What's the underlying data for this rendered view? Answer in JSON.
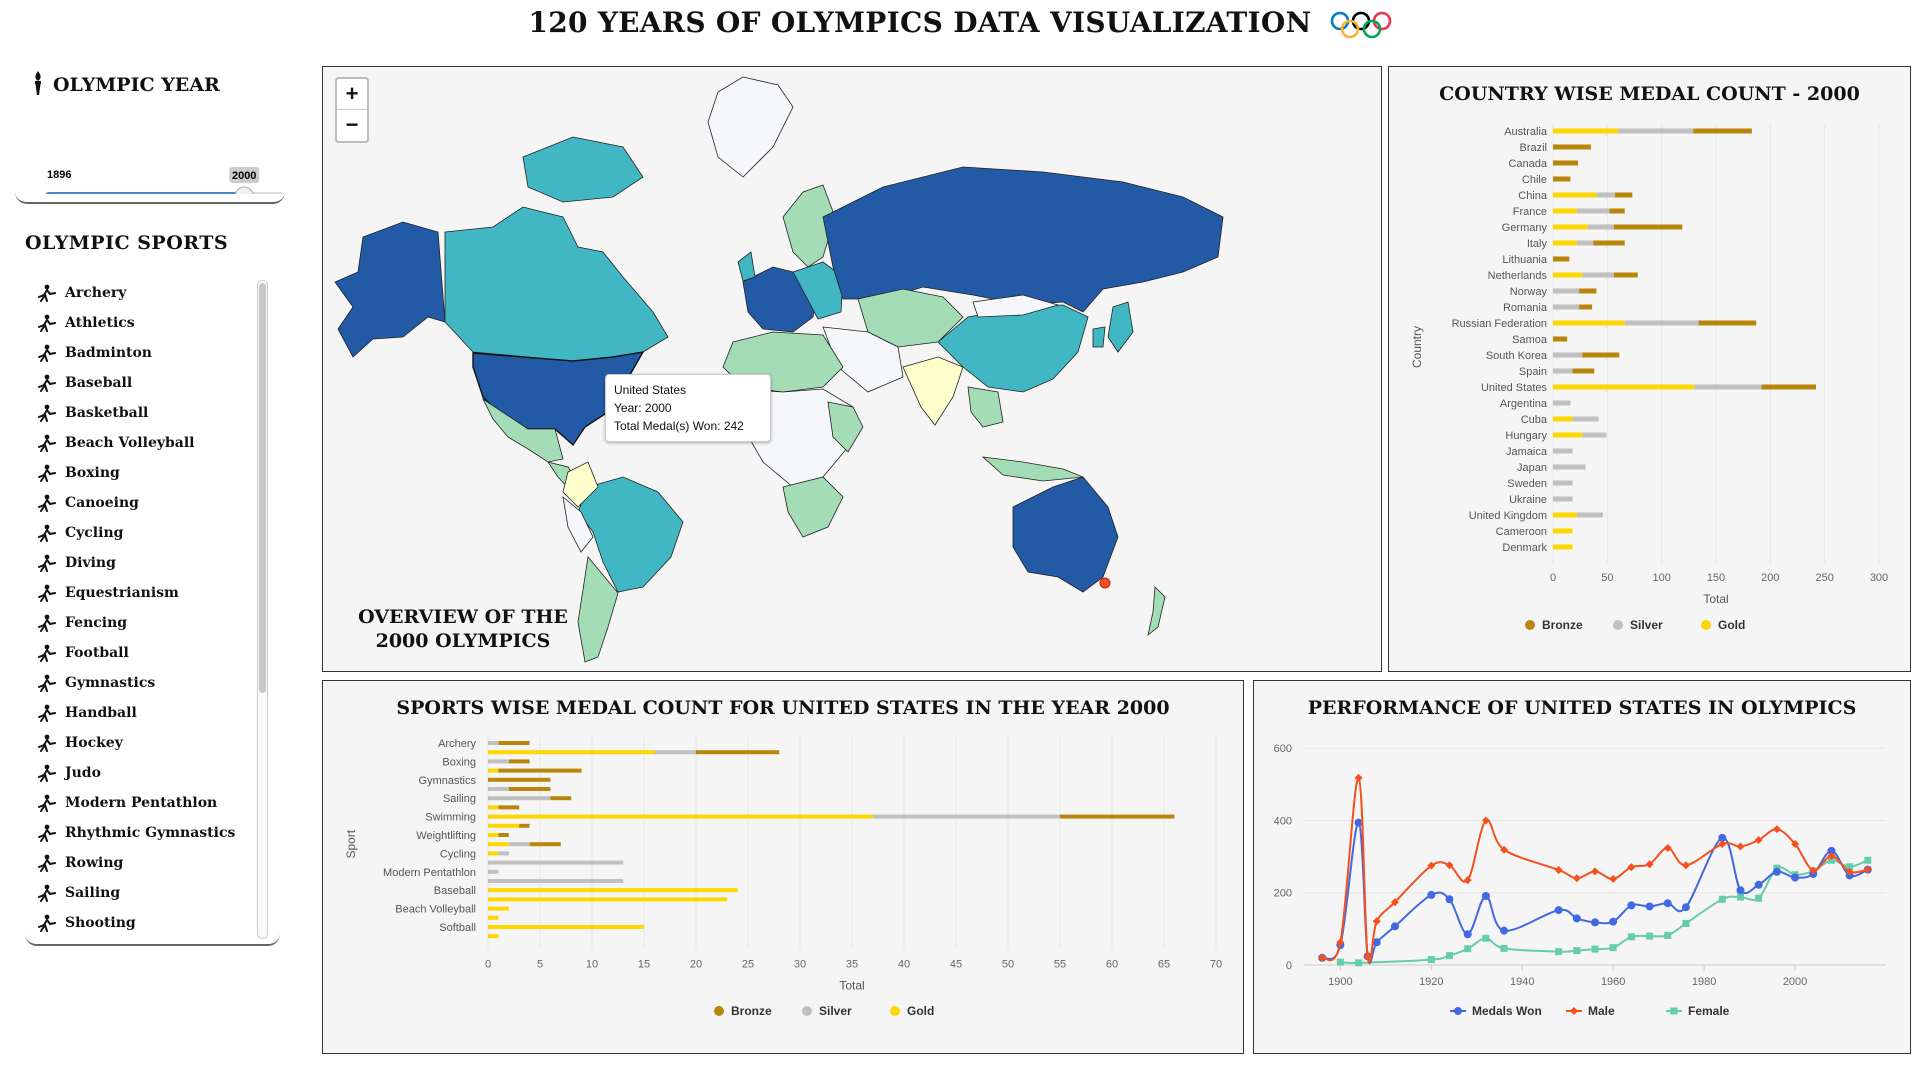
{
  "title": "120 YEARS OF OLYMPICS DATA VISUALIZATION",
  "year_panel": {
    "title": "OLYMPIC YEAR",
    "selected_year": "2000",
    "min_label": "1896",
    "ticks": [
      "1896",
      "1908",
      "1928",
      "1952",
      "1968",
      "1984",
      "2000",
      "2016"
    ],
    "slider_fraction": 0.83
  },
  "sports_panel": {
    "title": "OLYMPIC SPORTS",
    "items": [
      "Archery",
      "Athletics",
      "Badminton",
      "Baseball",
      "Basketball",
      "Beach Volleyball",
      "Boxing",
      "Canoeing",
      "Cycling",
      "Diving",
      "Equestrianism",
      "Fencing",
      "Football",
      "Gymnastics",
      "Handball",
      "Hockey",
      "Judo",
      "Modern Pentathlon",
      "Rhythmic Gymnastics",
      "Rowing",
      "Sailing",
      "Shooting"
    ]
  },
  "map": {
    "zoom_in": "+",
    "zoom_out": "−",
    "caption_line1": "OVERVIEW OF THE",
    "caption_line2": "2000 OLYMPICS",
    "tooltip": {
      "country": "United States",
      "year": "Year: 2000",
      "medals": "Total Medal(s) Won: 242"
    },
    "colors": {
      "high": "#235aa6",
      "mid": "#42b7c4",
      "low": "#a3dcb5",
      "lower": "#ffffcc",
      "none": "#f5f7fb",
      "ocean": "#f5f5f5"
    }
  },
  "colors": {
    "bronze": "#b8860b",
    "silver": "#c0c0c0",
    "gold": "#ffd700",
    "medals": "#4169e1",
    "male": "#f4511e",
    "female": "#66cdaa"
  },
  "country_chart": {
    "title": "COUNTRY WISE MEDAL COUNT - 2000",
    "chart_data": {
      "type": "bar",
      "orientation": "horizontal",
      "stacked": true,
      "categories": [
        "Australia",
        "Brazil",
        "Canada",
        "Chile",
        "China",
        "France",
        "Germany",
        "Italy",
        "Lithuania",
        "Netherlands",
        "Norway",
        "Romania",
        "Russian Federation",
        "Samoa",
        "South Korea",
        "Spain",
        "United States",
        "Argentina",
        "Cuba",
        "Hungary",
        "Jamaica",
        "Japan",
        "Sweden",
        "Ukraine",
        "United Kingdom",
        "Cameroon",
        "Denmark"
      ],
      "series": [
        {
          "name": "Gold",
          "values": [
            60,
            0,
            0,
            0,
            40,
            22,
            32,
            22,
            0,
            27,
            0,
            0,
            66,
            0,
            0,
            0,
            130,
            0,
            18,
            27,
            0,
            0,
            0,
            0,
            22,
            18,
            18
          ]
        },
        {
          "name": "Silver",
          "values": [
            69,
            0,
            0,
            0,
            17,
            30,
            24,
            15,
            0,
            29,
            24,
            24,
            68,
            0,
            27,
            18,
            62,
            16,
            24,
            22,
            18,
            30,
            18,
            18,
            24,
            0,
            0
          ]
        },
        {
          "name": "Bronze",
          "values": [
            54,
            35,
            23,
            16,
            16,
            14,
            63,
            29,
            15,
            22,
            16,
            12,
            53,
            13,
            34,
            20,
            50,
            0,
            0,
            0,
            0,
            0,
            0,
            0,
            0,
            0,
            0
          ]
        }
      ],
      "xlabel": "Total",
      "ylabel": "Country",
      "xticks": [
        0,
        50,
        100,
        150,
        200,
        250,
        300
      ],
      "xlim": [
        0,
        300
      ],
      "legend": [
        "Bronze",
        "Silver",
        "Gold"
      ],
      "legend_position": "bottom"
    }
  },
  "sports_chart": {
    "title": "SPORTS WISE MEDAL COUNT FOR UNITED STATES IN THE YEAR 2000",
    "chart_data": {
      "type": "bar",
      "orientation": "horizontal",
      "stacked": true,
      "note_rows": "each sport has two rows in the original",
      "rows": [
        {
          "label": "Archery",
          "gold": 0,
          "silver": 1,
          "bronze": 3
        },
        {
          "label": "",
          "gold": 16,
          "silver": 4,
          "bronze": 8
        },
        {
          "label": "Boxing",
          "gold": 0,
          "silver": 2,
          "bronze": 2
        },
        {
          "label": "",
          "gold": 1,
          "silver": 0,
          "bronze": 8
        },
        {
          "label": "Gymnastics",
          "gold": 0,
          "silver": 0,
          "bronze": 6
        },
        {
          "label": "",
          "gold": 0,
          "silver": 2,
          "bronze": 4
        },
        {
          "label": "Sailing",
          "gold": 0,
          "silver": 6,
          "bronze": 2
        },
        {
          "label": "",
          "gold": 1,
          "silver": 0,
          "bronze": 2
        },
        {
          "label": "Swimming",
          "gold": 37,
          "silver": 18,
          "bronze": 11
        },
        {
          "label": "",
          "gold": 3,
          "silver": 0,
          "bronze": 1
        },
        {
          "label": "Weightlifting",
          "gold": 1,
          "silver": 0,
          "bronze": 1
        },
        {
          "label": "",
          "gold": 2,
          "silver": 2,
          "bronze": 3
        },
        {
          "label": "Cycling",
          "gold": 1,
          "silver": 1,
          "bronze": 0
        },
        {
          "label": "",
          "gold": 0,
          "silver": 13,
          "bronze": 0
        },
        {
          "label": "Modern Pentathlon",
          "gold": 0,
          "silver": 1,
          "bronze": 0
        },
        {
          "label": "",
          "gold": 0,
          "silver": 13,
          "bronze": 0
        },
        {
          "label": "Baseball",
          "gold": 24,
          "silver": 0,
          "bronze": 0
        },
        {
          "label": "",
          "gold": 23,
          "silver": 0,
          "bronze": 0
        },
        {
          "label": "Beach Volleyball",
          "gold": 2,
          "silver": 0,
          "bronze": 0
        },
        {
          "label": "",
          "gold": 1,
          "silver": 0,
          "bronze": 0
        },
        {
          "label": "Softball",
          "gold": 15,
          "silver": 0,
          "bronze": 0
        },
        {
          "label": "",
          "gold": 1,
          "silver": 0,
          "bronze": 0
        }
      ],
      "xlabel": "Total",
      "ylabel": "Sport",
      "xticks": [
        0,
        5,
        10,
        15,
        20,
        25,
        30,
        35,
        40,
        45,
        50,
        55,
        60,
        65,
        70
      ],
      "xlim": [
        0,
        70
      ],
      "legend": [
        "Bronze",
        "Silver",
        "Gold"
      ],
      "legend_position": "bottom"
    }
  },
  "perf_chart": {
    "title": "PERFORMANCE OF UNITED STATES IN OLYMPICS",
    "chart_data": {
      "type": "line",
      "xticks": [
        1900,
        1920,
        1940,
        1960,
        1980,
        2000
      ],
      "yticks": [
        0,
        200,
        400,
        600
      ],
      "xlim": [
        1892,
        2020
      ],
      "ylim": [
        0,
        620
      ],
      "series": [
        {
          "name": "Medals Won",
          "points": [
            [
              1896,
              20
            ],
            [
              1900,
              55
            ],
            [
              1904,
              394
            ],
            [
              1906,
              24
            ],
            [
              1908,
              63
            ],
            [
              1912,
              107
            ],
            [
              1920,
              194
            ],
            [
              1924,
              182
            ],
            [
              1928,
              85
            ],
            [
              1932,
              191
            ],
            [
              1936,
              95
            ],
            [
              1948,
              152
            ],
            [
              1952,
              129
            ],
            [
              1956,
              118
            ],
            [
              1960,
              120
            ],
            [
              1964,
              165
            ],
            [
              1968,
              162
            ],
            [
              1972,
              171
            ],
            [
              1976,
              160
            ],
            [
              1984,
              352
            ],
            [
              1988,
              207
            ],
            [
              1992,
              222
            ],
            [
              1996,
              258
            ],
            [
              2000,
              242
            ],
            [
              2004,
              252
            ],
            [
              2008,
              316
            ],
            [
              2012,
              248
            ],
            [
              2016,
              264
            ]
          ]
        },
        {
          "name": "Male",
          "points": [
            [
              1896,
              20
            ],
            [
              1900,
              63
            ],
            [
              1904,
              518
            ],
            [
              1906,
              24
            ],
            [
              1908,
              121
            ],
            [
              1912,
              174
            ],
            [
              1920,
              275
            ],
            [
              1924,
              276
            ],
            [
              1928,
              235
            ],
            [
              1932,
              400
            ],
            [
              1936,
              319
            ],
            [
              1948,
              263
            ],
            [
              1952,
              240
            ],
            [
              1956,
              259
            ],
            [
              1960,
              238
            ],
            [
              1964,
              271
            ],
            [
              1968,
              279
            ],
            [
              1972,
              324
            ],
            [
              1976,
              276
            ],
            [
              1984,
              335
            ],
            [
              1988,
              328
            ],
            [
              1992,
              346
            ],
            [
              1996,
              376
            ],
            [
              2000,
              335
            ],
            [
              2004,
              262
            ],
            [
              2008,
              302
            ],
            [
              2012,
              258
            ],
            [
              2016,
              264
            ]
          ]
        },
        {
          "name": "Female",
          "points": [
            [
              1900,
              8
            ],
            [
              1904,
              6
            ],
            [
              1920,
              15
            ],
            [
              1924,
              26
            ],
            [
              1928,
              45
            ],
            [
              1932,
              74
            ],
            [
              1936,
              46
            ],
            [
              1948,
              37
            ],
            [
              1952,
              40
            ],
            [
              1956,
              44
            ],
            [
              1960,
              48
            ],
            [
              1964,
              78
            ],
            [
              1968,
              80
            ],
            [
              1972,
              82
            ],
            [
              1976,
              115
            ],
            [
              1984,
              182
            ],
            [
              1988,
              188
            ],
            [
              1992,
              185
            ],
            [
              1996,
              268
            ],
            [
              2000,
              250
            ],
            [
              2004,
              260
            ],
            [
              2008,
              290
            ],
            [
              2012,
              272
            ],
            [
              2016,
              290
            ]
          ]
        }
      ],
      "legend": [
        "Medals Won",
        "Male",
        "Female"
      ],
      "legend_position": "bottom"
    }
  }
}
